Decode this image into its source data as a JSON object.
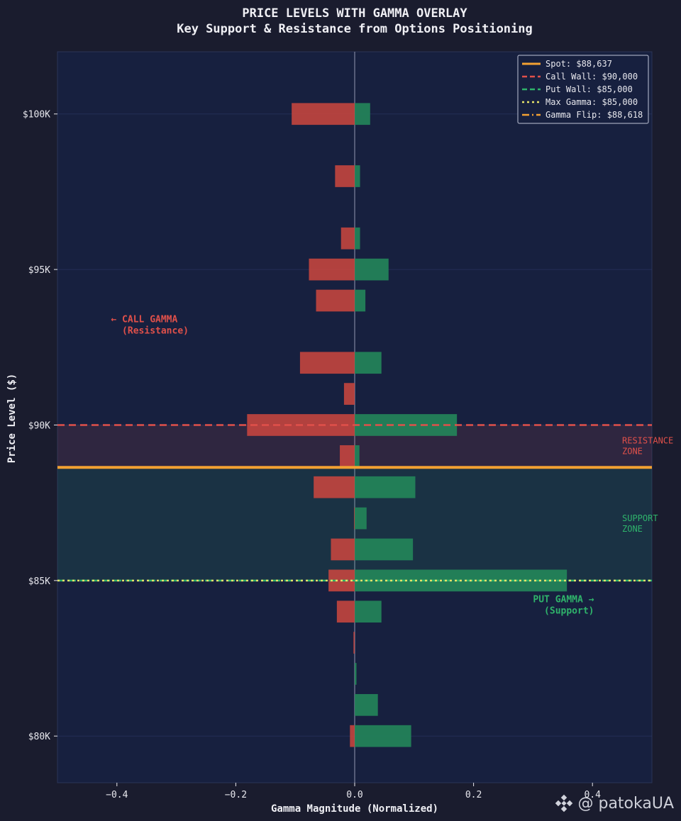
{
  "chart_data": {
    "type": "bar",
    "orientation": "horizontal",
    "title": "PRICE LEVELS WITH GAMMA OVERLAY",
    "subtitle": "Key Support & Resistance from Options Positioning",
    "xlabel": "Gamma Magnitude (Normalized)",
    "ylabel": "Price Level ($)",
    "xlim": [
      -0.5,
      0.5
    ],
    "ylim": [
      78500,
      102000
    ],
    "x_ticks": [
      -0.4,
      -0.2,
      0.0,
      0.2,
      0.4
    ],
    "x_tick_labels": [
      "−0.4",
      "−0.2",
      "0.0",
      "0.2",
      "0.4"
    ],
    "y_ticks": [
      80000,
      85000,
      90000,
      95000,
      100000
    ],
    "y_tick_labels": [
      "$80K",
      "$85K",
      "$90K",
      "$95K",
      "$100K"
    ],
    "price_levels": [
      80000,
      81000,
      82000,
      83000,
      84000,
      85000,
      86000,
      87000,
      88000,
      89000,
      90000,
      91000,
      92000,
      94000,
      95000,
      96000,
      98000,
      100000
    ],
    "series": [
      {
        "key": "call",
        "values": [
          -0.008,
          0,
          0,
          -0.002,
          -0.03,
          -0.044,
          -0.04,
          -0.001,
          -0.069,
          -0.025,
          -0.181,
          -0.018,
          -0.092,
          -0.065,
          -0.077,
          -0.023,
          -0.033,
          -0.106
        ]
      },
      {
        "key": "put",
        "values": [
          0.095,
          0.039,
          0.003,
          0.0,
          0.045,
          0.357,
          0.098,
          0.02,
          0.102,
          0.008,
          0.172,
          0,
          0.045,
          0.018,
          0.057,
          0.009,
          0.009,
          0.026
        ]
      }
    ],
    "reference_lines": [
      {
        "label": "Spot: $88,637",
        "price": 88637,
        "style": "solid",
        "color": "#f2a132"
      },
      {
        "label": "Call Wall: $90,000",
        "price": 90000,
        "style": "dashed",
        "color": "#e0504a"
      },
      {
        "label": "Put Wall: $85,000",
        "price": 85000,
        "style": "dashed",
        "color": "#2fb36b"
      },
      {
        "label": "Max Gamma: $85,000",
        "price": 85000,
        "style": "dotted",
        "color": "#e6e36a"
      },
      {
        "label": "Gamma Flip: $88,618",
        "price": 88618,
        "style": "dashdot",
        "color": "#f2a132"
      }
    ],
    "zones": [
      {
        "label_lines": [
          "RESISTANCE",
          "ZONE"
        ],
        "from": 88637,
        "to": 90000,
        "color": "#e0504a"
      },
      {
        "label_lines": [
          "SUPPORT",
          "ZONE"
        ],
        "from": 85000,
        "to": 88637,
        "color": "#2fb36b"
      }
    ],
    "annotations": [
      {
        "lines": [
          "← CALL GAMMA",
          "  (Resistance)"
        ],
        "x": -0.41,
        "y": 93300,
        "color": "#e0504a"
      },
      {
        "lines": [
          "PUT GAMMA →",
          "  (Support)"
        ],
        "x": 0.3,
        "y": 84300,
        "color": "#2fb36b"
      }
    ],
    "legend_position": "top-right",
    "grid": true,
    "colors": {
      "page_bg": "#1a1c2e",
      "plot_bg": "#17203f",
      "call": "#c8453f",
      "put": "#23865a",
      "text": "#e8e8ee",
      "axis_label": "#f0f0f5"
    }
  },
  "watermark": {
    "text": "@ patokaUA",
    "icon": "binance-logo-icon"
  }
}
